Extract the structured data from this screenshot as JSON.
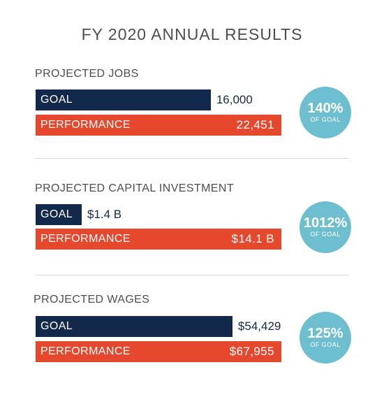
{
  "title": "FY 2020 ANNUAL RESULTS",
  "chart_data": {
    "type": "bar",
    "title": "FY 2020 ANNUAL RESULTS",
    "sections": [
      {
        "title": "PROJECTED JOBS",
        "goal_label": "GOAL",
        "goal_value": 16000,
        "goal_text": "16,000",
        "performance_label": "PERFORMANCE",
        "performance_value": 22451,
        "performance_text": "22,451",
        "percent_text": "140%",
        "percent_sub": "OF GOAL"
      },
      {
        "title": "PROJECTED CAPITAL INVESTMENT",
        "goal_label": "GOAL",
        "goal_value": 1.4,
        "goal_text": "$1.4 B",
        "performance_label": "PERFORMANCE",
        "performance_value": 14.1,
        "performance_text": "$14.1 B",
        "percent_text": "1012%",
        "percent_sub": "OF GOAL"
      },
      {
        "title": "PROJECTED WAGES",
        "goal_label": "GOAL",
        "goal_value": 54429,
        "goal_text": "$54,429",
        "performance_label": "PERFORMANCE",
        "performance_value": 67955,
        "performance_text": "$67,955",
        "percent_text": "125%",
        "percent_sub": "OF GOAL"
      }
    ]
  },
  "colors": {
    "goal": "#13294b",
    "performance": "#e5482d",
    "circle": "#6dbfcf"
  }
}
